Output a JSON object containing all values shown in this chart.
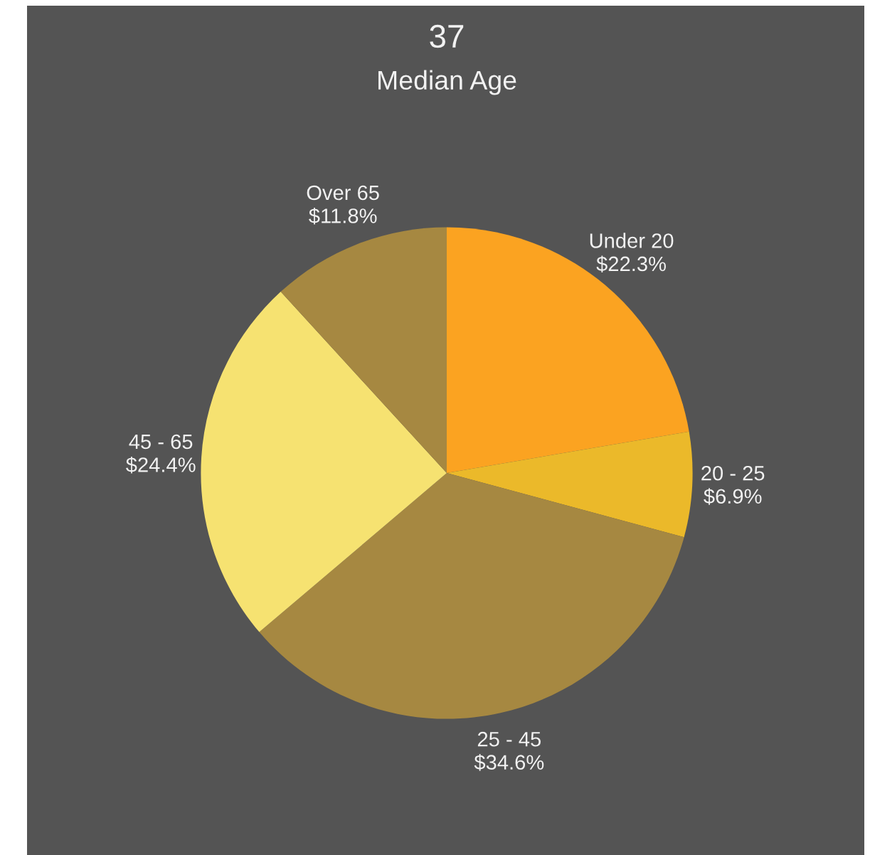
{
  "chart_data": {
    "type": "pie",
    "title": "37",
    "subtitle": "Median Age",
    "categories": [
      "Under 20",
      "20 - 25",
      "25 - 45",
      "45 - 65",
      "Over 65"
    ],
    "values": [
      22.3,
      6.9,
      34.6,
      24.4,
      11.8
    ],
    "colors": [
      "#fba321",
      "#ebb92a",
      "#a68841",
      "#f6e271",
      "#a68841"
    ],
    "value_labels": [
      "$22.3%",
      "$6.9%",
      "$34.6%",
      "$24.4%",
      "$11.8%"
    ]
  }
}
